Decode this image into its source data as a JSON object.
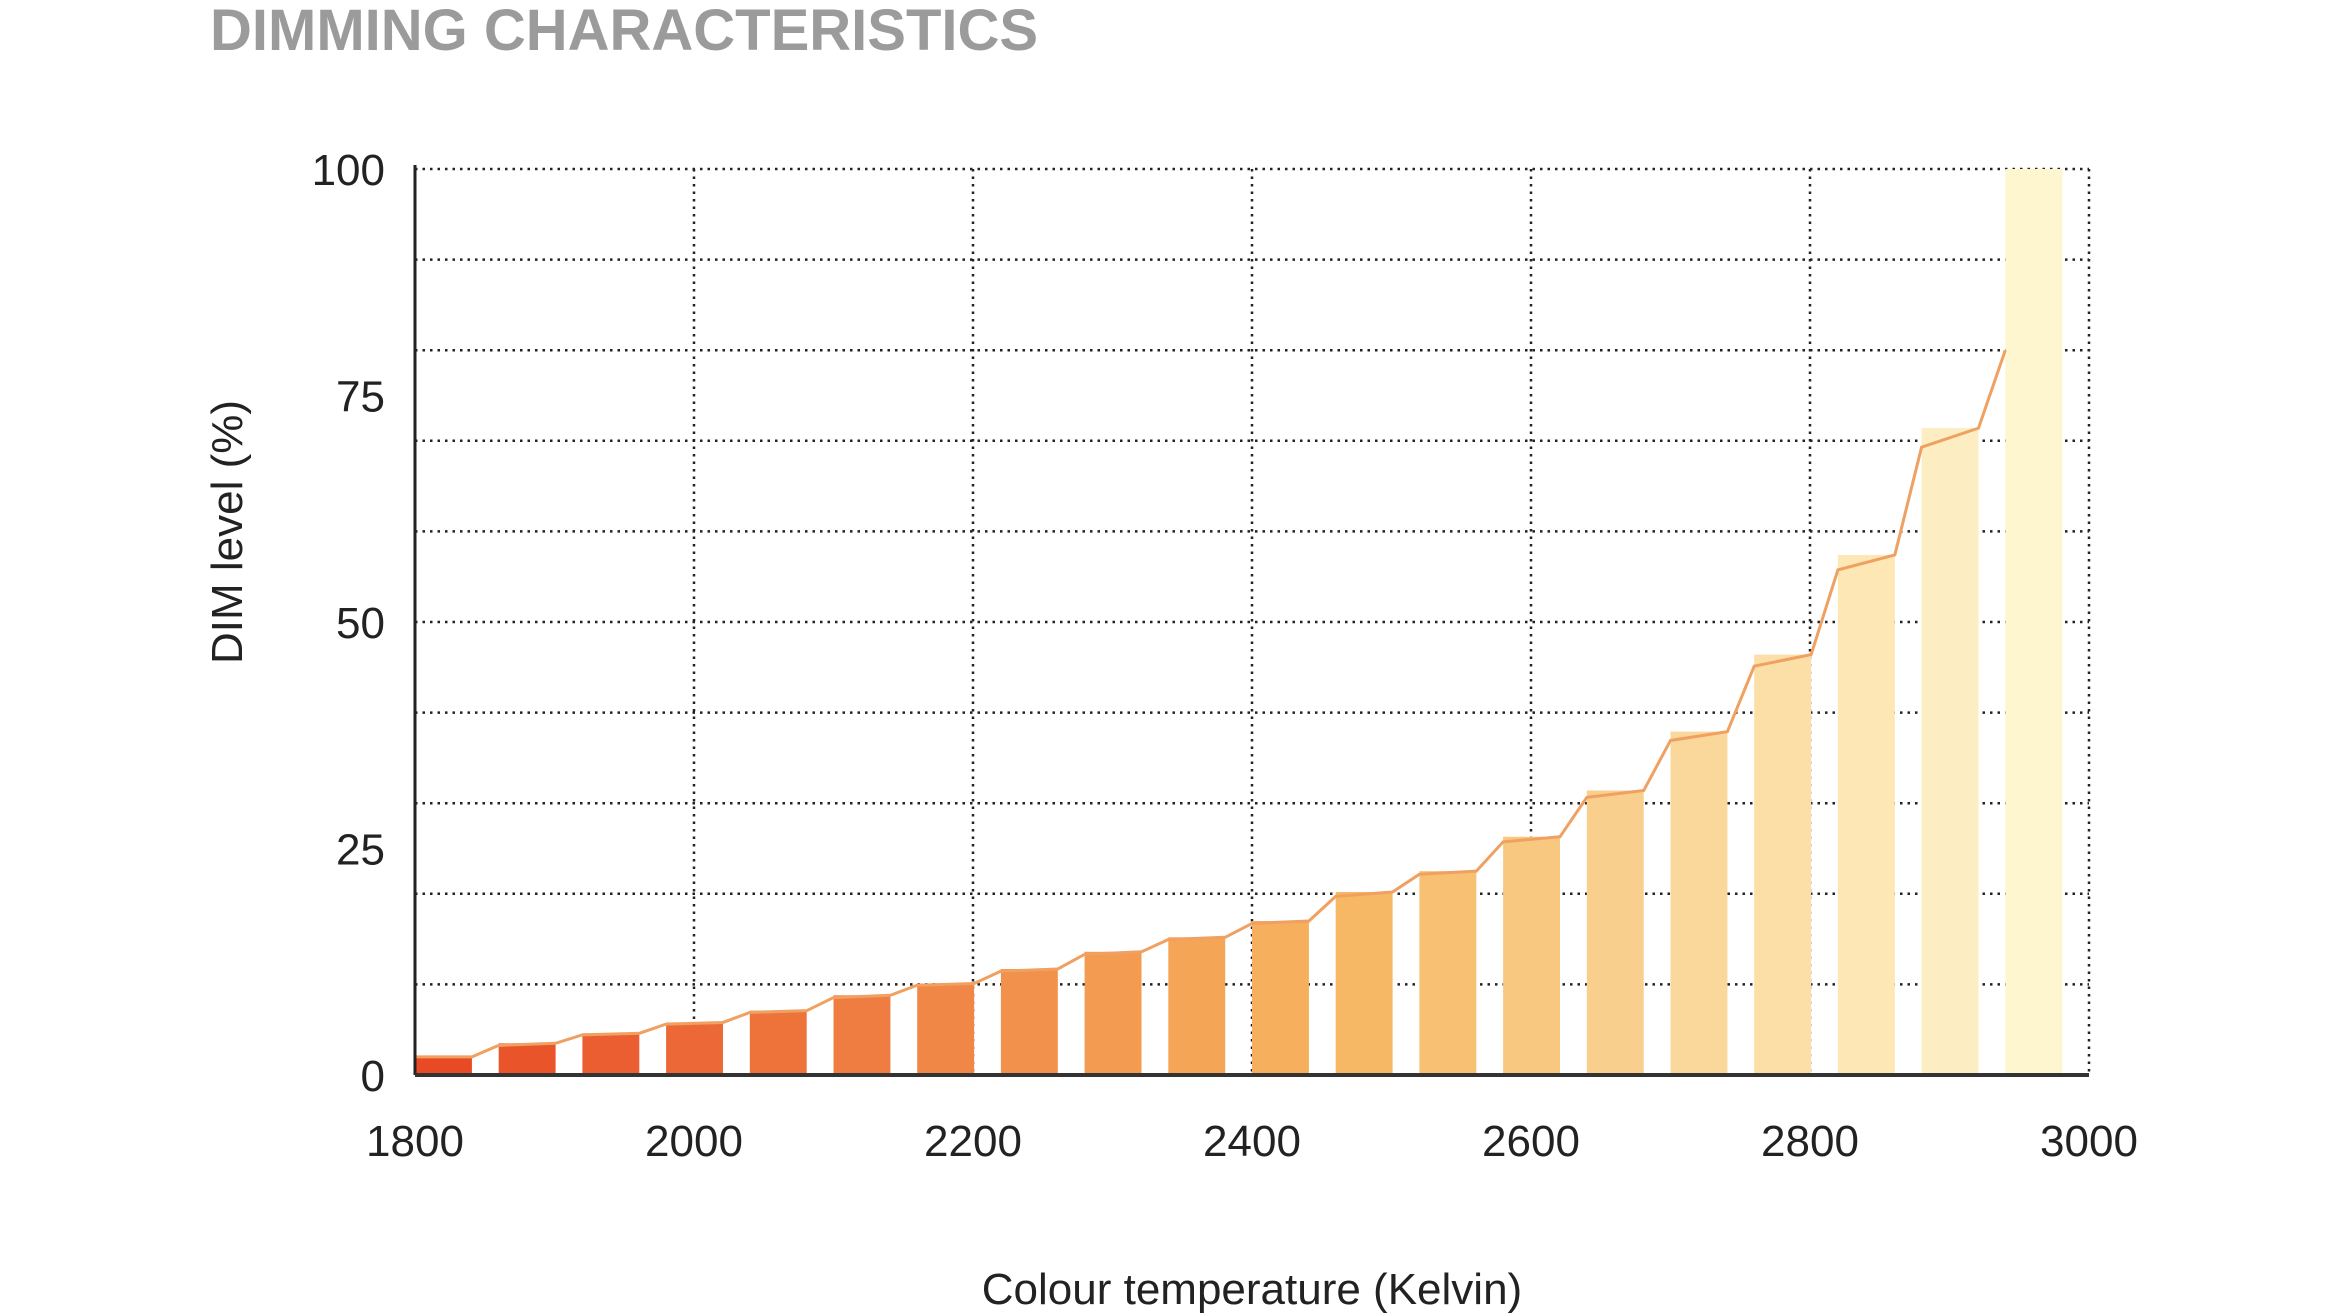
{
  "chart_data": {
    "type": "bar",
    "title": "DIMMING CHARACTERISTICS",
    "xlabel": "Colour temperature (Kelvin)",
    "ylabel": "DIM level (%)",
    "xlim": [
      1800,
      3000
    ],
    "ylim": [
      0,
      100
    ],
    "xticks": [
      "1800",
      "2000",
      "2200",
      "2400",
      "2600",
      "2800",
      "3000"
    ],
    "yticks": [
      "0",
      "25",
      "50",
      "75",
      "100"
    ],
    "grid": true,
    "x": [
      1800,
      1860,
      1920,
      1980,
      2040,
      2100,
      2160,
      2220,
      2280,
      2340,
      2400,
      2460,
      2520,
      2580,
      2640,
      2700,
      2760,
      2820,
      2880,
      2940
    ],
    "values": [
      2.0,
      3.5,
      4.6,
      5.8,
      7.1,
      8.8,
      10.1,
      11.7,
      13.6,
      15.2,
      17.0,
      20.2,
      22.5,
      26.3,
      31.4,
      37.9,
      46.4,
      57.4,
      71.4,
      100
    ],
    "trend_line": true,
    "colors": {
      "start": "#e84a26",
      "mid": "#f7b45e",
      "end": "#fdf6cf",
      "line": "#f0a060"
    }
  }
}
